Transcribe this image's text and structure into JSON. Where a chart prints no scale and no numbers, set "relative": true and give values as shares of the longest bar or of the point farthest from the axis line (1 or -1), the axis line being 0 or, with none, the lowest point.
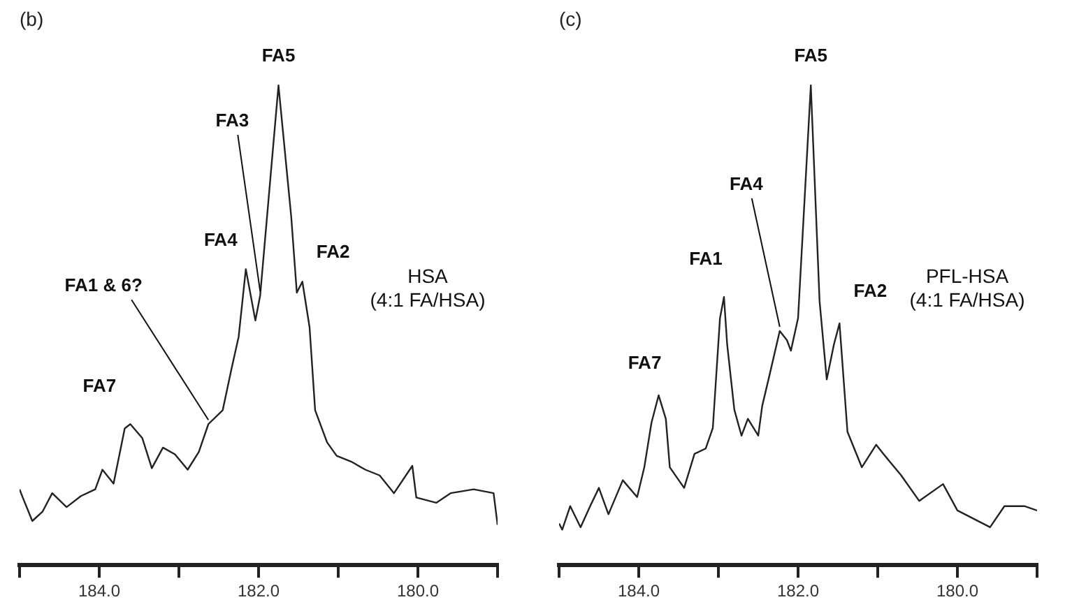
{
  "chart_data": [
    {
      "type": "line",
      "title": "(b)",
      "relative": true,
      "color": "#222222",
      "marker": "none",
      "line_style": "solid",
      "grid": false,
      "legend": false,
      "x": [
        185.0,
        184.96,
        184.84,
        184.71,
        184.59,
        184.41,
        184.23,
        184.05,
        183.96,
        183.82,
        183.68,
        183.61,
        183.46,
        183.34,
        183.2,
        183.05,
        182.89,
        182.75,
        182.63,
        182.45,
        182.34,
        182.25,
        182.16,
        182.04,
        181.98,
        181.75,
        181.59,
        181.52,
        181.45,
        181.36,
        181.29,
        181.14,
        181.02,
        180.84,
        180.66,
        180.48,
        180.3,
        180.07,
        180.02,
        179.77,
        179.59,
        179.3,
        179.05,
        179.0
      ],
      "values": [
        0.158,
        0.141,
        0.092,
        0.112,
        0.15,
        0.121,
        0.144,
        0.158,
        0.199,
        0.17,
        0.285,
        0.294,
        0.265,
        0.202,
        0.245,
        0.231,
        0.199,
        0.236,
        0.294,
        0.323,
        0.409,
        0.476,
        0.617,
        0.51,
        0.562,
        1.0,
        0.726,
        0.568,
        0.591,
        0.496,
        0.323,
        0.256,
        0.228,
        0.216,
        0.199,
        0.187,
        0.15,
        0.207,
        0.141,
        0.13,
        0.15,
        0.158,
        0.15,
        0.084
      ],
      "xlim": [
        185,
        179
      ],
      "xticks": [
        {
          "value": 185,
          "label": null
        },
        {
          "value": 184,
          "label": "184.0"
        },
        {
          "value": 183,
          "label": null
        },
        {
          "value": 182,
          "label": "182.0"
        },
        {
          "value": 181,
          "label": null
        },
        {
          "value": 180,
          "label": "180.0"
        },
        {
          "value": 179,
          "label": null
        }
      ],
      "annotations": [
        {
          "text": "FA5",
          "x": 181.75,
          "y": 1.0
        },
        {
          "text": "FA3",
          "x": 181.98,
          "y": 0.562
        },
        {
          "text": "FA4",
          "x": 182.16,
          "y": 0.617
        },
        {
          "text": "FA2",
          "x": 181.45,
          "y": 0.591
        },
        {
          "text": "FA1 & 6?",
          "x": 182.63,
          "y": 0.294
        },
        {
          "text": "FA7",
          "x": 183.61,
          "y": 0.294
        },
        "HSA\n(4:1 FA/HSA)"
      ]
    },
    {
      "type": "line",
      "title": "(c)",
      "relative": true,
      "color": "#222222",
      "marker": "none",
      "line_style": "solid",
      "grid": false,
      "legend": false,
      "x": [
        185.0,
        184.96,
        184.86,
        184.73,
        184.61,
        184.5,
        184.38,
        184.2,
        184.02,
        183.93,
        183.84,
        183.75,
        183.66,
        183.61,
        183.43,
        183.3,
        183.16,
        183.07,
        182.98,
        182.93,
        182.89,
        182.8,
        182.71,
        182.63,
        182.5,
        182.45,
        182.36,
        182.23,
        182.14,
        182.09,
        182.0,
        181.84,
        181.73,
        181.64,
        181.55,
        181.48,
        181.38,
        181.2,
        181.02,
        180.93,
        180.71,
        180.48,
        180.18,
        180.0,
        179.59,
        179.41,
        179.16,
        179.0
      ],
      "values": [
        0.087,
        0.074,
        0.123,
        0.079,
        0.123,
        0.161,
        0.106,
        0.177,
        0.142,
        0.204,
        0.297,
        0.354,
        0.305,
        0.204,
        0.161,
        0.232,
        0.243,
        0.286,
        0.515,
        0.559,
        0.46,
        0.324,
        0.27,
        0.305,
        0.27,
        0.332,
        0.395,
        0.488,
        0.469,
        0.447,
        0.515,
        1.0,
        0.55,
        0.387,
        0.46,
        0.504,
        0.278,
        0.204,
        0.251,
        0.232,
        0.188,
        0.134,
        0.169,
        0.114,
        0.079,
        0.123,
        0.123,
        0.114
      ],
      "xlim": [
        185,
        179
      ],
      "xticks": [
        {
          "value": 185,
          "label": null
        },
        {
          "value": 184,
          "label": "184.0"
        },
        {
          "value": 183,
          "label": null
        },
        {
          "value": 182,
          "label": "182.0"
        },
        {
          "value": 181,
          "label": null
        },
        {
          "value": 180,
          "label": "180.0"
        },
        {
          "value": 179,
          "label": null
        }
      ],
      "annotations": [
        {
          "text": "FA5",
          "x": 181.84,
          "y": 1.0
        },
        {
          "text": "FA4",
          "x": 182.23,
          "y": 0.488
        },
        {
          "text": "FA1",
          "x": 182.93,
          "y": 0.559
        },
        {
          "text": "FA2",
          "x": 181.48,
          "y": 0.504
        },
        {
          "text": "FA7",
          "x": 183.75,
          "y": 0.354
        },
        "PFL-HSA\n(4:1 FA/HSA)"
      ]
    }
  ]
}
